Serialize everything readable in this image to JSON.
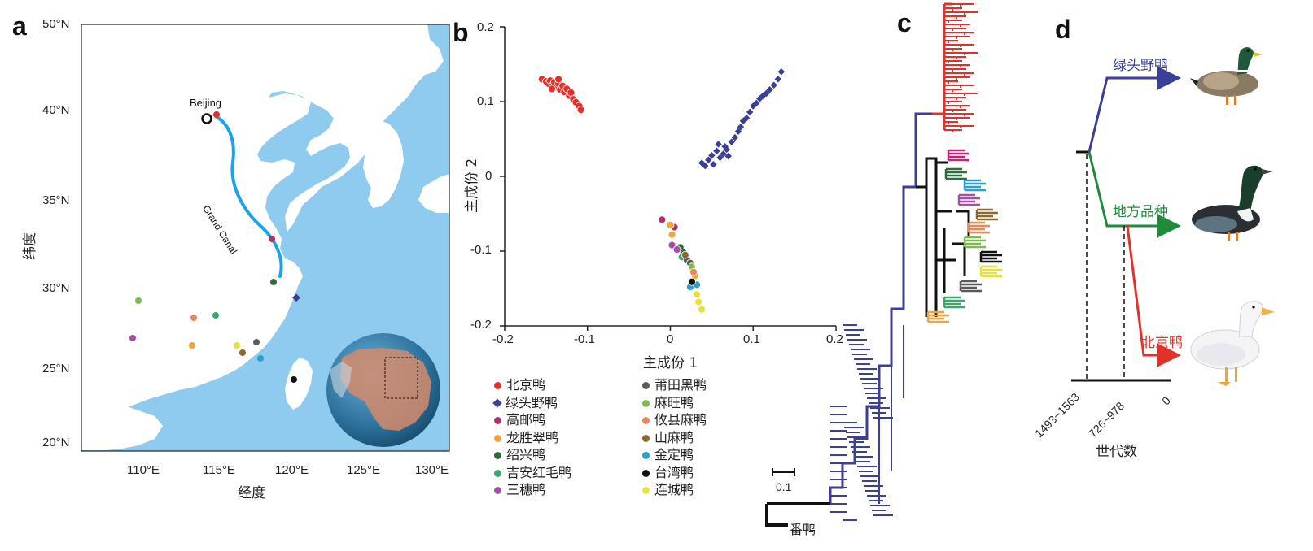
{
  "panels": {
    "a": "a",
    "b": "b",
    "c": "c",
    "d": "d"
  },
  "map": {
    "lat_ticks": [
      "50°N",
      "40°N",
      "35°N",
      "30°N",
      "25°N",
      "20°N"
    ],
    "lon_ticks": [
      "110°E",
      "115°E",
      "120°E",
      "125°E",
      "130°E"
    ],
    "xlabel": "经度",
    "ylabel": "纬度",
    "beijing_label": "Beijing",
    "canal_label": "Grand Canal",
    "colors": {
      "sea": "#8ecbef",
      "land": "#ffffff",
      "canal": "#1aa3e8"
    }
  },
  "pca": {
    "xlabel": "主成份 1",
    "ylabel": "主成份 2",
    "x_ticks": [
      "-0.2",
      "-0.1",
      "0",
      "0.1",
      "0.2"
    ],
    "y_ticks": [
      "0.2",
      "0.1",
      "0",
      "-0.1",
      "-0.2"
    ]
  },
  "legend": [
    {
      "label": "北京鸭",
      "color": "#e2302a",
      "shape": "circle"
    },
    {
      "label": "绿头野鸭",
      "color": "#3b3f96",
      "shape": "diamond"
    },
    {
      "label": "高邮鸭",
      "color": "#b0306e",
      "shape": "circle"
    },
    {
      "label": "龙胜翠鸭",
      "color": "#f0a43a",
      "shape": "circle"
    },
    {
      "label": "绍兴鸭",
      "color": "#2d6b3a",
      "shape": "circle"
    },
    {
      "label": "吉安红毛鸭",
      "color": "#3aa86a",
      "shape": "circle"
    },
    {
      "label": "三穗鸭",
      "color": "#a64fa6",
      "shape": "circle"
    },
    {
      "label": "莆田黑鸭",
      "color": "#5a5a5a",
      "shape": "circle"
    },
    {
      "label": "麻旺鸭",
      "color": "#7cbd4a",
      "shape": "circle"
    },
    {
      "label": "攸县麻鸭",
      "color": "#e8875a",
      "shape": "circle"
    },
    {
      "label": "山麻鸭",
      "color": "#8a6a2e",
      "shape": "circle"
    },
    {
      "label": "金定鸭",
      "color": "#2a9fd0",
      "shape": "circle"
    },
    {
      "label": "台湾鸭",
      "color": "#111111",
      "shape": "circle"
    },
    {
      "label": "连城鸭",
      "color": "#e6e23a",
      "shape": "circle"
    }
  ],
  "tree": {
    "scale_label": "0.1",
    "outgroup_label": "番鸭"
  },
  "timeline": {
    "mallard_label": "绿头野鸭",
    "local_label": "地方品种",
    "peking_label": "北京鸭",
    "tick_labels": [
      "1493~1563",
      "726~978",
      "0"
    ],
    "xlabel": "世代数",
    "colors": {
      "mallard": "#3b3f96",
      "local": "#1f8a3c",
      "peking": "#e2302a"
    }
  },
  "chart_data": {
    "type": "scatter",
    "xlabel": "主成份 1",
    "ylabel": "主成份 2",
    "xlim": [
      -0.2,
      0.2
    ],
    "ylim": [
      -0.2,
      0.2
    ],
    "series": [
      {
        "name": "北京鸭",
        "points": [
          [
            -0.155,
            0.13
          ],
          [
            -0.15,
            0.127
          ],
          [
            -0.147,
            0.124
          ],
          [
            -0.145,
            0.128
          ],
          [
            -0.142,
            0.122
          ],
          [
            -0.14,
            0.126
          ],
          [
            -0.138,
            0.119
          ],
          [
            -0.135,
            0.124
          ],
          [
            -0.133,
            0.116
          ],
          [
            -0.13,
            0.121
          ],
          [
            -0.128,
            0.113
          ],
          [
            -0.125,
            0.117
          ],
          [
            -0.122,
            0.108
          ],
          [
            -0.12,
            0.112
          ],
          [
            -0.117,
            0.103
          ],
          [
            -0.114,
            0.099
          ],
          [
            -0.11,
            0.094
          ],
          [
            -0.108,
            0.089
          ],
          [
            -0.135,
            0.13
          ],
          [
            -0.143,
            0.117
          ]
        ]
      },
      {
        "name": "绿头野鸭",
        "points": [
          [
            0.038,
            0.018
          ],
          [
            0.042,
            0.014
          ],
          [
            0.046,
            0.022
          ],
          [
            0.05,
            0.028
          ],
          [
            0.052,
            0.016
          ],
          [
            0.056,
            0.034
          ],
          [
            0.06,
            0.025
          ],
          [
            0.064,
            0.03
          ],
          [
            0.066,
            0.04
          ],
          [
            0.07,
            0.027
          ],
          [
            0.074,
            0.046
          ],
          [
            0.078,
            0.052
          ],
          [
            0.082,
            0.06
          ],
          [
            0.085,
            0.066
          ],
          [
            0.088,
            0.074
          ],
          [
            0.092,
            0.078
          ],
          [
            0.096,
            0.086
          ],
          [
            0.1,
            0.094
          ],
          [
            0.104,
            0.098
          ],
          [
            0.108,
            0.104
          ],
          [
            0.112,
            0.108
          ],
          [
            0.116,
            0.111
          ],
          [
            0.12,
            0.116
          ],
          [
            0.125,
            0.122
          ],
          [
            0.13,
            0.13
          ],
          [
            0.134,
            0.14
          ],
          [
            0.058,
            0.043
          ],
          [
            0.068,
            0.036
          ]
        ]
      },
      {
        "name": "高邮鸭",
        "points": [
          [
            -0.01,
            -0.058
          ],
          [
            0.005,
            -0.068
          ]
        ]
      },
      {
        "name": "龙胜翠鸭",
        "points": [
          [
            0.0,
            -0.065
          ],
          [
            0.002,
            -0.078
          ],
          [
            0.03,
            -0.133
          ]
        ]
      },
      {
        "name": "绍兴鸭",
        "points": [
          [
            0.012,
            -0.095
          ],
          [
            0.016,
            -0.102
          ]
        ]
      },
      {
        "name": "吉安红毛鸭",
        "points": [
          [
            0.014,
            -0.108
          ]
        ]
      },
      {
        "name": "三穗鸭",
        "points": [
          [
            0.002,
            -0.092
          ],
          [
            0.008,
            -0.098
          ]
        ]
      },
      {
        "name": "莆田黑鸭",
        "points": [
          [
            0.02,
            -0.112
          ],
          [
            0.024,
            -0.116
          ]
        ]
      },
      {
        "name": "麻旺鸭",
        "points": [
          [
            0.026,
            -0.121
          ]
        ]
      },
      {
        "name": "攸县麻鸭",
        "points": [
          [
            0.028,
            -0.128
          ]
        ]
      },
      {
        "name": "山麻鸭",
        "points": [
          [
            0.018,
            -0.105
          ]
        ]
      },
      {
        "name": "金定鸭",
        "points": [
          [
            0.024,
            -0.148
          ],
          [
            0.032,
            -0.145
          ]
        ]
      },
      {
        "name": "台湾鸭",
        "points": [
          [
            0.026,
            -0.141
          ]
        ]
      },
      {
        "name": "连城鸭",
        "points": [
          [
            0.032,
            -0.158
          ],
          [
            0.034,
            -0.168
          ],
          [
            0.038,
            -0.178
          ]
        ]
      }
    ]
  }
}
